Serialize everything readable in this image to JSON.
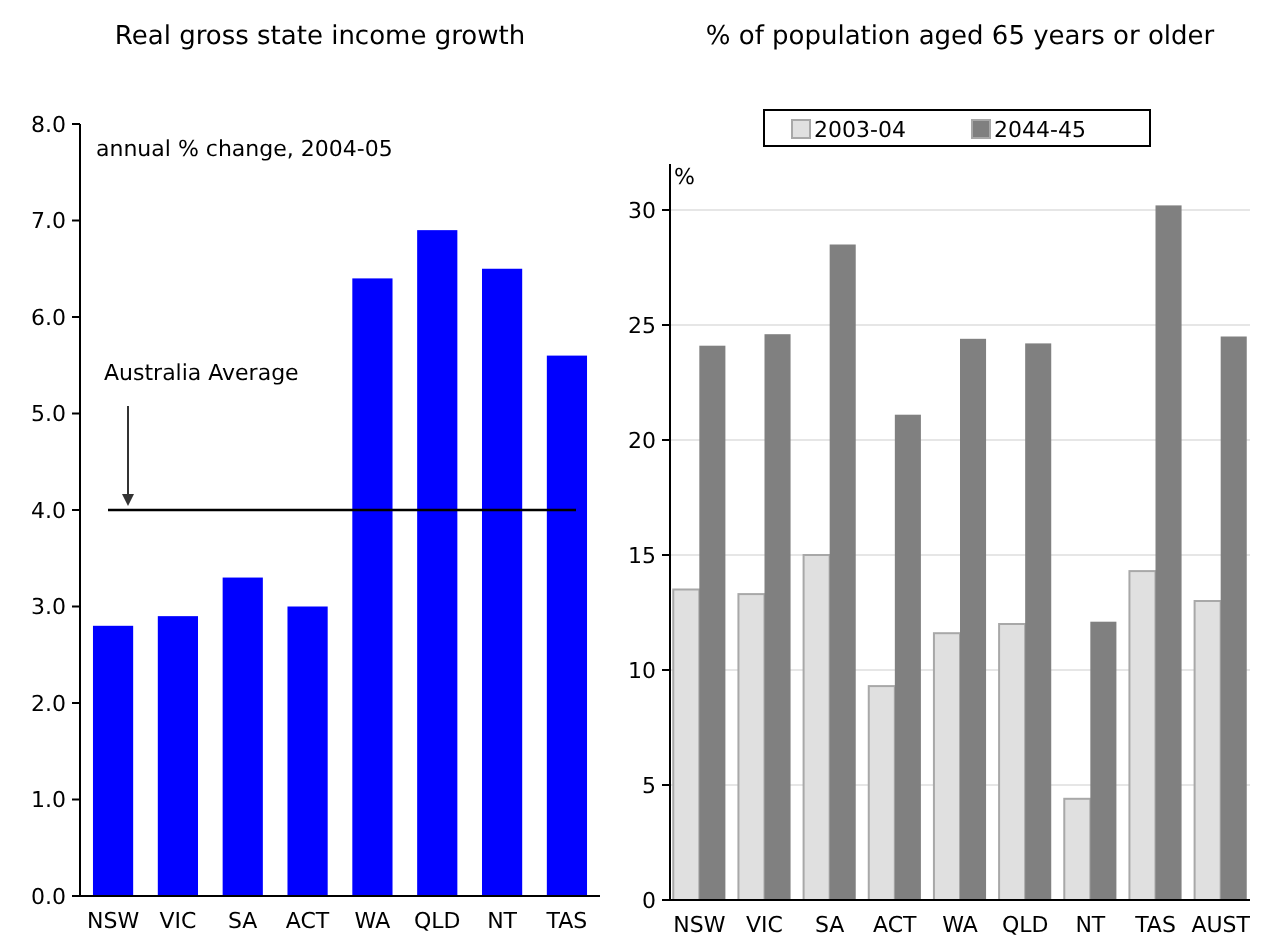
{
  "chart_data": [
    {
      "type": "bar",
      "title": "Real gross state income growth",
      "categories": [
        "NSW",
        "VIC",
        "SA",
        "ACT",
        "WA",
        "QLD",
        "NT",
        "TAS"
      ],
      "values": [
        2.8,
        2.9,
        3.3,
        3.0,
        6.4,
        6.9,
        6.5,
        5.6
      ],
      "color": "#0000ff",
      "ylim": [
        0,
        8
      ],
      "yticks": [
        {
          "value": 0,
          "label": "0.0"
        },
        {
          "value": 1,
          "label": "1.0"
        },
        {
          "value": 2,
          "label": "2.0"
        },
        {
          "value": 3,
          "label": "3.0"
        },
        {
          "value": 4,
          "label": "4.0"
        },
        {
          "value": 5,
          "label": "5.0"
        },
        {
          "value": 6,
          "label": "6.0"
        },
        {
          "value": 7,
          "label": "7.0"
        },
        {
          "value": 8,
          "label": "8.0"
        }
      ],
      "grid": false,
      "annotations": [
        "annual % change, 2004-05"
      ],
      "ref_lines": [
        {
          "axis": "y",
          "value": 4,
          "label": "Australia Average",
          "color": "#000000"
        }
      ]
    },
    {
      "type": "bar",
      "title": "% of population aged 65 years or older",
      "ylabel": "%",
      "categories": [
        "NSW",
        "VIC",
        "SA",
        "ACT",
        "WA",
        "QLD",
        "NT",
        "TAS",
        "AUST"
      ],
      "series": [
        {
          "name": "2003-04",
          "color": "#e0e0e0",
          "values": [
            13.5,
            13.3,
            15.0,
            9.3,
            11.6,
            12.0,
            4.4,
            14.3,
            13.0
          ]
        },
        {
          "name": "2044-45",
          "color": "#808080",
          "values": [
            24.1,
            24.6,
            28.5,
            21.1,
            24.4,
            24.2,
            12.1,
            30.2,
            24.5
          ]
        }
      ],
      "ylim": [
        0,
        32
      ],
      "yticks": [
        0,
        5,
        10,
        15,
        20,
        25,
        30
      ],
      "grid": "y",
      "legend": "top"
    }
  ]
}
